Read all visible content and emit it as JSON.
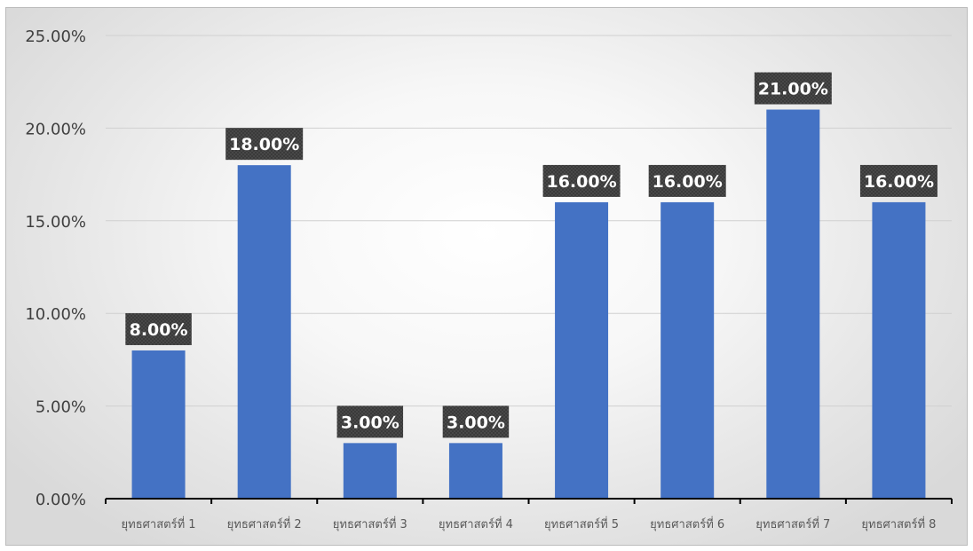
{
  "chart_data": {
    "type": "bar",
    "categories": [
      "ยุทธศาสตร์ที่ 1",
      "ยุทธศาสตร์ที่ 2",
      "ยุทธศาสตร์ที่ 3",
      "ยุทธศาสตร์ที่ 4",
      "ยุทธศาสตร์ที่ 5",
      "ยุทธศาสตร์ที่ 6",
      "ยุทธศาสตร์ที่ 7",
      "ยุทธศาสตร์ที่ 8"
    ],
    "values": [
      8,
      18,
      3,
      3,
      16,
      16,
      21,
      16
    ],
    "data_labels": [
      "8.00%",
      "18.00%",
      "3.00%",
      "3.00%",
      "16.00%",
      "16.00%",
      "21.00%",
      "16.00%"
    ],
    "title": "",
    "xlabel": "",
    "ylabel": "",
    "ylim": [
      0,
      25
    ],
    "yticks": [
      0,
      5,
      10,
      15,
      20,
      25
    ],
    "ytick_labels": [
      "0.00%",
      "5.00%",
      "10.00%",
      "15.00%",
      "20.00%",
      "25.00%"
    ],
    "grid": true,
    "legend": "none",
    "bar_color": "#4472c4",
    "label_box_color": "#3a3a3a",
    "label_text_color": "#ffffff",
    "gridline_color": "#d0d0d0",
    "axis_color": "#000000"
  }
}
